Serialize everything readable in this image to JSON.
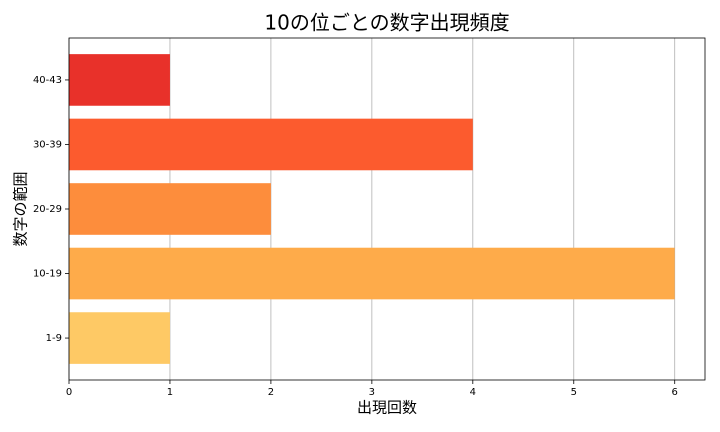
{
  "chart_data": {
    "type": "bar",
    "orientation": "horizontal",
    "title": "10の位ごとの数字出現頻度",
    "x_label": "出現回数",
    "y_label": "数字の範囲",
    "categories": [
      "1-9",
      "10-19",
      "20-29",
      "30-39",
      "40-43"
    ],
    "values": [
      1,
      6,
      2,
      4,
      1
    ],
    "colors": [
      "#fec965",
      "#feab4a",
      "#fd8d3c",
      "#fc5b2e",
      "#e8312a"
    ],
    "xlim": [
      0,
      6.3
    ],
    "xticks": [
      0,
      1,
      2,
      3,
      4,
      5,
      6
    ],
    "grid": true
  }
}
